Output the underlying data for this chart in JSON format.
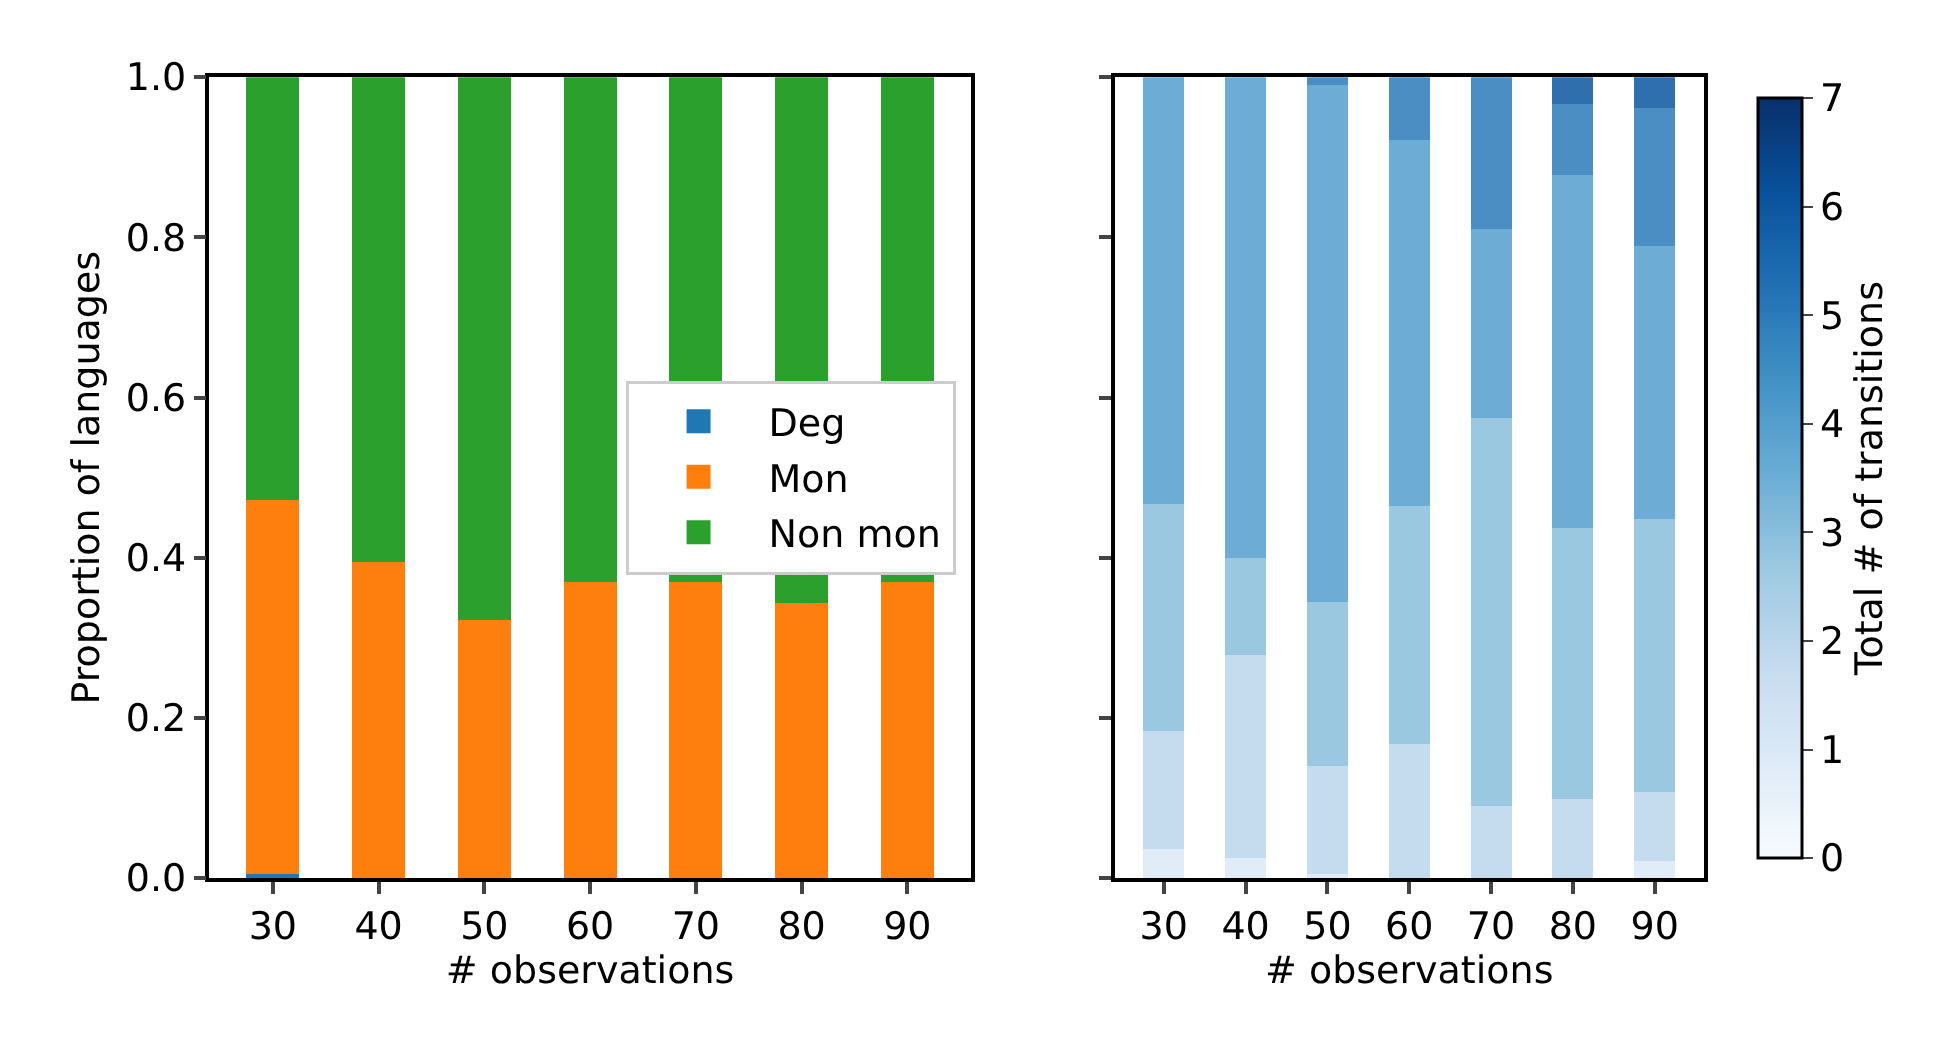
{
  "chart_data": [
    {
      "type": "bar",
      "stacked": true,
      "categories": [
        "30",
        "40",
        "50",
        "60",
        "70",
        "80",
        "90"
      ],
      "xlabel": "# observations",
      "ylabel": "Proportion of languages",
      "ylim": [
        0,
        1
      ],
      "yticks": [
        {
          "value": 0,
          "label": "0.0"
        },
        {
          "value": 0.2,
          "label": "0.2"
        },
        {
          "value": 0.4,
          "label": "0.4"
        },
        {
          "value": 0.6,
          "label": "0.6"
        },
        {
          "value": 0.8,
          "label": "0.8"
        },
        {
          "value": 1,
          "label": "1.0"
        }
      ],
      "legend": "right",
      "series": [
        {
          "name": "Deg",
          "color": "#1f77b4",
          "values": [
            0.005,
            0,
            0,
            0,
            0,
            0,
            0
          ]
        },
        {
          "name": "Mon",
          "color": "#ff7f0e",
          "values": [
            0.467,
            0.395,
            0.322,
            0.37,
            0.37,
            0.343,
            0.37
          ]
        },
        {
          "name": "Non mon",
          "color": "#2ca02c",
          "values": [
            0.528,
            0.605,
            0.678,
            0.63,
            0.63,
            0.657,
            0.63
          ]
        }
      ]
    },
    {
      "type": "bar",
      "stacked": true,
      "categories": [
        "30",
        "40",
        "50",
        "60",
        "70",
        "80",
        "90"
      ],
      "xlabel": "# observations",
      "ylim": [
        0,
        1
      ],
      "yticks": [
        {
          "value": 0,
          "label": null
        },
        {
          "value": 0.2,
          "label": null
        },
        {
          "value": 0.4,
          "label": null
        },
        {
          "value": 0.6,
          "label": null
        },
        {
          "value": 0.8,
          "label": null
        },
        {
          "value": 1,
          "label": null
        }
      ],
      "tick_labels": "x",
      "legend": false,
      "clabel": "Total # of transitions",
      "clim": [
        0,
        7
      ],
      "cticks": [
        0,
        1,
        2,
        3,
        4,
        5,
        6,
        7
      ],
      "series": [
        {
          "cvalues": [
            1,
            1,
            1,
            null,
            null,
            null,
            1
          ],
          "values": [
            0.037,
            0.025,
            0.005,
            null,
            null,
            null,
            0.021
          ]
        },
        {
          "cvalues": [
            2,
            2,
            2,
            2,
            2,
            2,
            2
          ],
          "values": [
            0.147,
            0.253,
            0.135,
            0.168,
            0.09,
            0.099,
            0.087
          ]
        },
        {
          "cvalues": [
            3,
            3,
            3,
            3,
            3,
            3,
            3
          ],
          "values": [
            0.283,
            0.122,
            0.205,
            0.296,
            0.485,
            0.338,
            0.34
          ]
        },
        {
          "cvalues": [
            4,
            4,
            4,
            4,
            4,
            4,
            4
          ],
          "values": [
            0.533,
            0.6,
            0.645,
            0.458,
            0.236,
            0.441,
            0.341
          ]
        },
        {
          "cvalues": [
            null,
            null,
            5,
            5,
            5,
            5,
            5
          ],
          "values": [
            null,
            null,
            0.01,
            0.078,
            0.189,
            0.088,
            0.172
          ]
        },
        {
          "cvalues": [
            null,
            null,
            null,
            null,
            null,
            6,
            6
          ],
          "values": [
            null,
            null,
            null,
            null,
            null,
            0.034,
            0.039
          ]
        }
      ]
    }
  ]
}
